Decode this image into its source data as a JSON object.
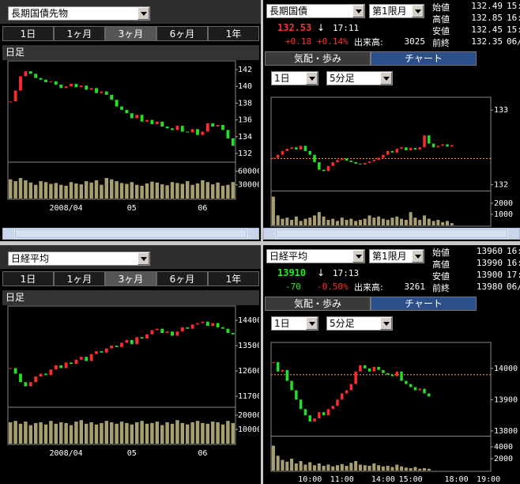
{
  "panels": [
    {
      "select": "長期国債先物",
      "tabs": [
        "1日",
        "1ヶ月",
        "3ヶ月",
        "6ヶ月",
        "1年"
      ],
      "active_tab": 2,
      "period": "日足",
      "chart": {
        "type": "candlestick",
        "categories": [
          null,
          null,
          null,
          null,
          null,
          null,
          null,
          null,
          null,
          null,
          null,
          "2008/04",
          null,
          null,
          null,
          null,
          null,
          null,
          null,
          null,
          null,
          null,
          null,
          null,
          "05",
          null,
          null,
          null,
          null,
          null,
          null,
          null,
          null,
          null,
          null,
          null,
          null,
          null,
          "06",
          null,
          null,
          null,
          null,
          null,
          null
        ],
        "close": [
          138.2,
          139.5,
          141.2,
          141.8,
          141.5,
          141.0,
          140.8,
          140.5,
          140.6,
          140.2,
          139.8,
          140.0,
          140.3,
          139.9,
          140.1,
          139.6,
          139.8,
          139.2,
          139.4,
          139.0,
          138.4,
          137.6,
          137.2,
          136.8,
          136.2,
          136.6,
          135.8,
          136.0,
          135.5,
          135.8,
          135.2,
          135.0,
          134.8,
          135.3,
          134.6,
          134.5,
          134.9,
          134.2,
          134.6,
          135.6,
          135.2,
          135.4,
          134.8,
          133.8,
          132.9
        ],
        "volume": [
          42000,
          38000,
          45000,
          40000,
          35000,
          30000,
          38000,
          36000,
          32000,
          34000,
          30000,
          28000,
          36000,
          33000,
          31000,
          38000,
          35000,
          40000,
          30000,
          45000,
          42000,
          38000,
          34000,
          32000,
          36000,
          30000,
          28000,
          33000,
          37000,
          35000,
          31000,
          29000,
          36000,
          34000,
          32000,
          38000,
          30000,
          33000,
          40000,
          36000,
          31000,
          35000,
          28000,
          30000,
          36000
        ],
        "ylim": [
          131.06,
          142.85
        ],
        "yticks": [
          142,
          140,
          138,
          136,
          134,
          132
        ],
        "vlim": [
          0,
          78000
        ],
        "vticks": [
          60000,
          30000
        ],
        "up_color": "#ff2a2a",
        "down_color": "#22e022",
        "volume_color": "#a89f70"
      }
    },
    {
      "select": "長期国債",
      "contract": "第1限月",
      "price": 132.53,
      "arrow": "↓",
      "time": "17:11",
      "change": "+0.18",
      "change_pct": "+0.14%",
      "volume_label": "出来高:",
      "volume": 3025,
      "price_color": "#ff3030",
      "change_color": "#ff3030",
      "pct_color": "#ff3030",
      "quotes": [
        {
          "label": "始値",
          "value": 132.49,
          "time": "15:"
        },
        {
          "label": "高値",
          "value": 132.85,
          "time": "16:"
        },
        {
          "label": "安値",
          "value": 132.45,
          "time": "15:"
        },
        {
          "label": "前終",
          "value": 132.35,
          "time": "06/"
        }
      ],
      "tabs": [
        "気配・歩み",
        "チャート"
      ],
      "active_tab": 1,
      "range": "1日",
      "interval": "5分足",
      "chart": {
        "type": "candlestick",
        "close": [
          132.36,
          132.4,
          132.45,
          132.48,
          132.5,
          132.47,
          132.52,
          132.45,
          132.4,
          132.3,
          132.2,
          132.18,
          132.25,
          132.3,
          132.33,
          132.35,
          132.32,
          132.3,
          132.28,
          132.27,
          132.29,
          132.31,
          132.33,
          132.36,
          132.4,
          132.45,
          132.43,
          132.48,
          132.5,
          132.46,
          132.49,
          132.47,
          132.5,
          132.66,
          132.55,
          132.5,
          132.52,
          132.54,
          132.51,
          132.53,
          null,
          null,
          null,
          null,
          null,
          null,
          null,
          null
        ],
        "volume": [
          2600,
          900,
          600,
          700,
          500,
          800,
          400,
          600,
          700,
          900,
          1200,
          800,
          500,
          600,
          400,
          700,
          500,
          600,
          400,
          500,
          600,
          900,
          700,
          800,
          600,
          500,
          700,
          800,
          600,
          500,
          1200,
          700,
          500,
          900,
          600,
          400,
          500,
          300,
          400,
          200,
          null,
          null,
          null,
          null,
          null,
          null,
          null,
          null
        ],
        "ylim": [
          131.93,
          133.15
        ],
        "yticks": [
          133,
          132
        ],
        "vlim": [
          0,
          3000
        ],
        "vticks": [
          2000,
          1000
        ],
        "up_color": "#ff2a2a",
        "down_color": "#22e022",
        "volume_color": "#a89f70",
        "ref_color": "#ffa040"
      }
    },
    {
      "select": "日経平均",
      "tabs": [
        "1日",
        "1ヶ月",
        "3ヶ月",
        "6ヶ月",
        "1年"
      ],
      "active_tab": 2,
      "period": "日足",
      "chart": {
        "type": "candlestick",
        "categories": [
          null,
          null,
          null,
          null,
          null,
          null,
          null,
          null,
          null,
          null,
          null,
          "2008/04",
          null,
          null,
          null,
          null,
          null,
          null,
          null,
          null,
          null,
          null,
          null,
          null,
          "05",
          null,
          null,
          null,
          null,
          null,
          null,
          null,
          null,
          null,
          null,
          null,
          null,
          null,
          "06",
          null,
          null,
          null,
          null,
          null,
          null
        ],
        "close": [
          12700,
          12500,
          12200,
          12050,
          12200,
          12400,
          12500,
          12450,
          12650,
          12800,
          12700,
          12900,
          12850,
          13000,
          13100,
          12950,
          13200,
          13300,
          13250,
          13400,
          13500,
          13450,
          13600,
          13700,
          13550,
          13800,
          13750,
          13900,
          14050,
          14100,
          13950,
          14000,
          13850,
          14000,
          14150,
          14100,
          14250,
          14300,
          14350,
          14200,
          14300,
          14150,
          14100,
          13950,
          13900
        ],
        "volume": [
          150000,
          160000,
          140000,
          155000,
          130000,
          145000,
          150000,
          135000,
          160000,
          140000,
          150000,
          145000,
          130000,
          155000,
          165000,
          140000,
          150000,
          135000,
          145000,
          160000,
          150000,
          140000,
          155000,
          145000,
          135000,
          150000,
          160000,
          140000,
          145000,
          155000,
          130000,
          150000,
          140000,
          165000,
          145000,
          135000,
          150000,
          160000,
          145000,
          140000,
          155000,
          150000,
          135000,
          160000,
          145000
        ],
        "ylim": [
          11334,
          14850
        ],
        "yticks": [
          14400,
          13500,
          12600,
          11700
        ],
        "vlim": [
          0,
          250000
        ],
        "vticks": [
          200000,
          100000
        ],
        "up_color": "#ff2a2a",
        "down_color": "#22e022",
        "volume_color": "#a89f70"
      }
    },
    {
      "select": "日経平均",
      "contract": "第1限月",
      "price": 13910,
      "arrow": "↓",
      "time": "17:13",
      "change": "-70",
      "change_pct": "-0.50%",
      "volume_label": "出来高:",
      "volume": 3261,
      "price_color": "#22ee22",
      "change_color": "#22ee22",
      "pct_color": "#ff3030",
      "quotes": [
        {
          "label": "始値",
          "value": 13960,
          "time": "16:"
        },
        {
          "label": "高値",
          "value": 13990,
          "time": "16:"
        },
        {
          "label": "安値",
          "value": 13900,
          "time": "17:"
        },
        {
          "label": "前終",
          "value": 13980,
          "time": "06/"
        }
      ],
      "tabs": [
        "気配・歩み",
        "チャート"
      ],
      "active_tab": 1,
      "range": "1日",
      "interval": "5分足",
      "chart": {
        "type": "candlestick",
        "categories": [
          null,
          null,
          null,
          null,
          null,
          null,
          null,
          null,
          "10:00",
          null,
          null,
          null,
          null,
          null,
          null,
          "11:00",
          null,
          null,
          null,
          null,
          null,
          null,
          null,
          null,
          "14:00",
          null,
          null,
          null,
          null,
          null,
          "15:00",
          null,
          null,
          null,
          null,
          null,
          null,
          null,
          null,
          null,
          "18:00",
          null,
          null,
          null,
          null,
          null,
          null,
          "19:00"
        ],
        "close": [
          14020,
          13990,
          13995,
          13960,
          13930,
          13900,
          13870,
          13850,
          13830,
          13840,
          13860,
          13850,
          13870,
          13880,
          13900,
          13920,
          13930,
          13950,
          13990,
          14010,
          14000,
          13990,
          14005,
          13995,
          13985,
          13980,
          13975,
          13990,
          13960,
          13950,
          13940,
          13930,
          13935,
          13920,
          13910,
          null,
          null,
          null,
          null,
          null,
          null,
          null,
          null,
          null,
          null,
          null,
          null,
          null
        ],
        "volume": [
          4200,
          2500,
          1800,
          1500,
          2000,
          1200,
          1600,
          1000,
          1400,
          900,
          1200,
          800,
          1000,
          700,
          900,
          1100,
          800,
          1300,
          1600,
          1000,
          900,
          800,
          1200,
          900,
          700,
          800,
          600,
          1000,
          700,
          500,
          400,
          600,
          300,
          400,
          300,
          null,
          null,
          null,
          null,
          null,
          null,
          null,
          null,
          null,
          null,
          null,
          null,
          null
        ],
        "ylim": [
          13787,
          14078
        ],
        "yticks": [
          14000,
          13900,
          13800
        ],
        "vlim": [
          0,
          5600
        ],
        "vticks": [
          4000,
          2000
        ],
        "up_color": "#ff2a2a",
        "down_color": "#22e022",
        "volume_color": "#a89f70",
        "ref_color": "#ffa040"
      }
    }
  ]
}
